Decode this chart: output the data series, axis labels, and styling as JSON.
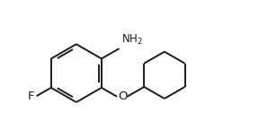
{
  "bg_color": "#ffffff",
  "line_color": "#1a1a1a",
  "line_width": 1.4,
  "font_size": 8.5,
  "ring_r": 0.52,
  "cy_r": 0.42,
  "xlim": [
    -1.6,
    2.9
  ],
  "ylim": [
    -1.15,
    1.3
  ]
}
